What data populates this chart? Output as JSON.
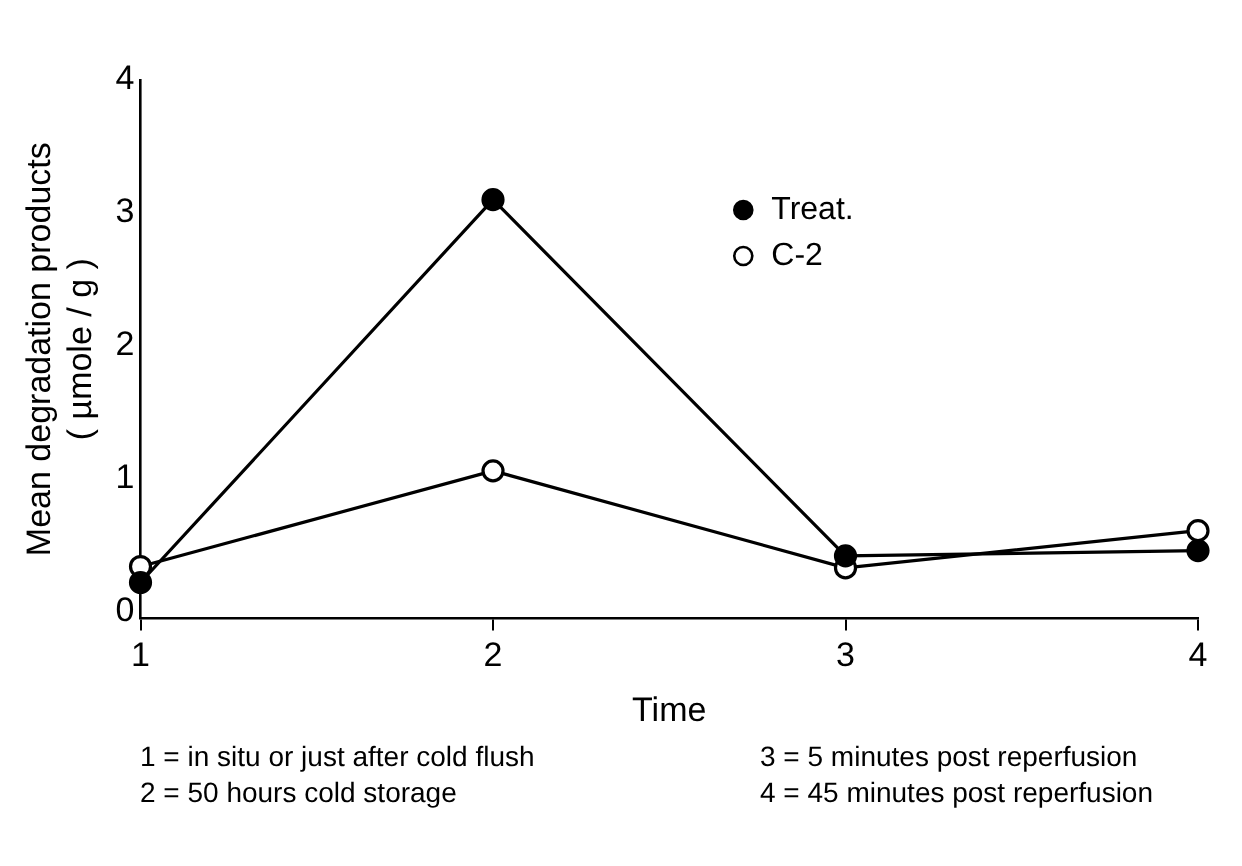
{
  "chart_data": {
    "type": "line",
    "xlabel": "Time",
    "ylabel": "Mean degradation products\n( µmole / g )",
    "x": [
      1,
      2,
      3,
      4
    ],
    "xlim": [
      1,
      4
    ],
    "xticks": [
      1,
      2,
      3,
      4
    ],
    "ylim": [
      -0.05,
      4
    ],
    "yticks": [
      0,
      1,
      2,
      3,
      4
    ],
    "grid": false,
    "legend": "top",
    "marker": "circle",
    "line_style": "solid",
    "series": [
      {
        "name": "Treat.",
        "color": "#000000",
        "values": [
          0.22,
          3.1,
          0.42,
          0.46
        ]
      },
      {
        "name": "C-2",
        "color": "#000000",
        "values": [
          0.34,
          1.06,
          0.33,
          0.61
        ]
      }
    ],
    "annotations": [
      "1 = in situ or just after cold flush",
      "3 = 5 minutes post reperfusion",
      "2 = 50 hours cold storage",
      "4 = 45 minutes post reperfusion"
    ]
  }
}
